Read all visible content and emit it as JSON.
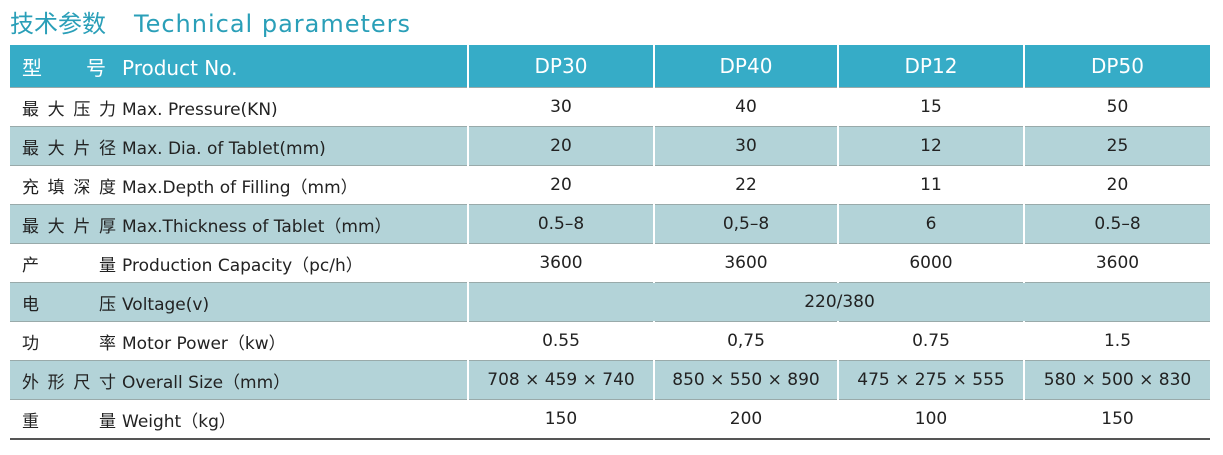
{
  "header": {
    "title_cn": "技术参数",
    "title_en": "Technical parameters"
  },
  "table": {
    "head": {
      "label_cn": "型 号",
      "label_en": "Product No.",
      "models": [
        "DP30",
        "DP40",
        "DP12",
        "DP50"
      ]
    },
    "rows": [
      {
        "label_cn": "最大压力",
        "label_en": "Max. Pressure(KN)",
        "values": [
          "30",
          "40",
          "15",
          "50"
        ]
      },
      {
        "label_cn": "最大片径",
        "label_en": "Max. Dia. of Tablet(mm)",
        "values": [
          "20",
          "30",
          "12",
          "25"
        ]
      },
      {
        "label_cn": "充填深度",
        "label_en": "Max.Depth of Filling（mm）",
        "values": [
          "20",
          "22",
          "11",
          "20"
        ]
      },
      {
        "label_cn": "最大片厚",
        "label_en": "Max.Thickness of Tablet（mm）",
        "values": [
          "0.5–8",
          "0,5–8",
          "6",
          "0.5–8"
        ]
      },
      {
        "label_cn": "产 量",
        "label_en": "Production Capacity（pc/h）",
        "values": [
          "3600",
          "3600",
          "6000",
          "3600"
        ]
      },
      {
        "label_cn": "电 压",
        "label_en": "Voltage(v)",
        "values": [
          "220/380"
        ]
      },
      {
        "label_cn": "功 率",
        "label_en": "Motor Power（kw）",
        "values": [
          "0.55",
          "0,75",
          "0.75",
          "1.5"
        ]
      },
      {
        "label_cn": "外形尺寸",
        "label_en": "Overall Size（mm）",
        "values": [
          "708 × 459 × 740",
          "850 × 550 × 890",
          "475 × 275 × 555",
          "580 × 500 × 830"
        ]
      },
      {
        "label_cn": "重 量",
        "label_en": "Weight（kg）",
        "values": [
          "150",
          "200",
          "100",
          "150"
        ]
      }
    ]
  }
}
